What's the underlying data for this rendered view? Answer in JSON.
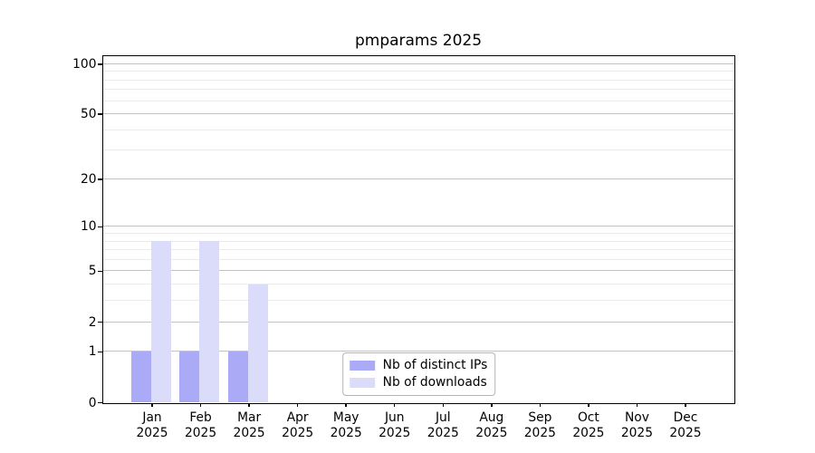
{
  "chart_data": {
    "type": "bar",
    "title": "pmparams 2025",
    "categories": [
      "Jan",
      "Feb",
      "Mar",
      "Apr",
      "May",
      "Jun",
      "Jul",
      "Aug",
      "Sep",
      "Oct",
      "Nov",
      "Dec"
    ],
    "category_year": "2025",
    "series": [
      {
        "name": "Nb of distinct IPs",
        "color": "#aaaaf6",
        "values": [
          1,
          1,
          1,
          0,
          0,
          0,
          0,
          0,
          0,
          0,
          0,
          0
        ]
      },
      {
        "name": "Nb of downloads",
        "color": "#dbdbfa",
        "values": [
          8,
          8,
          4,
          0,
          0,
          0,
          0,
          0,
          0,
          0,
          0,
          0
        ]
      }
    ],
    "yscale": "log1p",
    "ylim": [
      0,
      111
    ],
    "yticks": [
      0,
      1,
      2,
      5,
      10,
      20,
      50,
      100
    ],
    "minor_gridlines": [
      3,
      4,
      6,
      7,
      8,
      9,
      30,
      40,
      60,
      70,
      80,
      90
    ],
    "grid": "horizontal",
    "legend_position": "lower center"
  },
  "colors": {
    "bar_distinct_ips": "#aaaaf6",
    "bar_downloads": "#dbdbfa",
    "grid_major": "#c3c3c3",
    "grid_minor": "#ebebeb",
    "spine": "#000000",
    "background": "#ffffff"
  }
}
